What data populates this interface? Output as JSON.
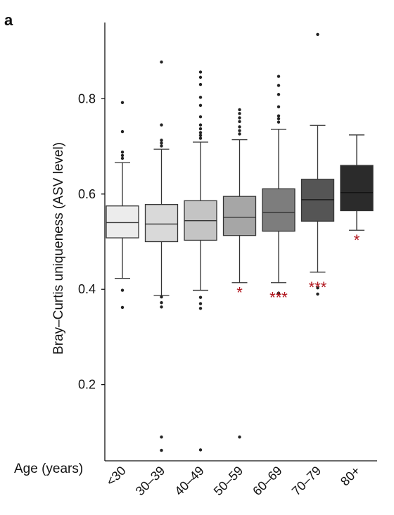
{
  "panel_label": "a",
  "chart_data": {
    "type": "box",
    "title": "",
    "xlabel": "Age (years)",
    "ylabel": "Bray–Curtis uniqueness (ASV level)",
    "ylim": [
      0.04,
      0.96
    ],
    "yticks": [
      0.2,
      0.4,
      0.6,
      0.8
    ],
    "ytick_labels": [
      "0.2",
      "0.4",
      "0.6",
      "0.8"
    ],
    "grid": false,
    "categories": [
      "<30",
      "30–39",
      "40–49",
      "50–59",
      "60–69",
      "70–79",
      "80+"
    ],
    "colors": [
      "#ececec",
      "#d9d9d9",
      "#c4c4c4",
      "#a6a6a6",
      "#7d7d7d",
      "#555555",
      "#2b2b2b"
    ],
    "significance_color": "#b0141c",
    "boxes": [
      {
        "category": "<30",
        "whisker_low": 0.423,
        "q1": 0.508,
        "median": 0.54,
        "q3": 0.575,
        "whisker_high": 0.666,
        "outliers": [
          0.792,
          0.731,
          0.688,
          0.681,
          0.675,
          0.398,
          0.362
        ],
        "significance": ""
      },
      {
        "category": "30–39",
        "whisker_low": 0.387,
        "q1": 0.5,
        "median": 0.537,
        "q3": 0.578,
        "whisker_high": 0.694,
        "outliers": [
          0.877,
          0.745,
          0.713,
          0.707,
          0.701,
          0.384,
          0.372,
          0.363,
          0.09,
          0.062
        ],
        "significance": ""
      },
      {
        "category": "40–49",
        "whisker_low": 0.398,
        "q1": 0.503,
        "median": 0.544,
        "q3": 0.586,
        "whisker_high": 0.709,
        "outliers": [
          0.856,
          0.845,
          0.83,
          0.803,
          0.786,
          0.762,
          0.745,
          0.737,
          0.729,
          0.723,
          0.717,
          0.383,
          0.37,
          0.36,
          0.063
        ],
        "significance": ""
      },
      {
        "category": "50–59",
        "whisker_low": 0.414,
        "q1": 0.513,
        "median": 0.551,
        "q3": 0.595,
        "whisker_high": 0.714,
        "outliers": [
          0.777,
          0.769,
          0.76,
          0.752,
          0.741,
          0.733,
          0.726,
          0.09
        ],
        "significance": "*"
      },
      {
        "category": "60–69",
        "whisker_low": 0.414,
        "q1": 0.522,
        "median": 0.561,
        "q3": 0.611,
        "whisker_high": 0.736,
        "outliers": [
          0.847,
          0.828,
          0.809,
          0.783,
          0.764,
          0.758,
          0.751,
          0.392
        ],
        "significance": "***"
      },
      {
        "category": "70–79",
        "whisker_low": 0.436,
        "q1": 0.543,
        "median": 0.588,
        "q3": 0.631,
        "whisker_high": 0.744,
        "outliers": [
          0.935,
          0.403,
          0.39
        ],
        "significance": "***"
      },
      {
        "category": "80+",
        "whisker_low": 0.524,
        "q1": 0.565,
        "median": 0.603,
        "q3": 0.66,
        "whisker_high": 0.724,
        "outliers": [],
        "significance": "*"
      }
    ]
  }
}
